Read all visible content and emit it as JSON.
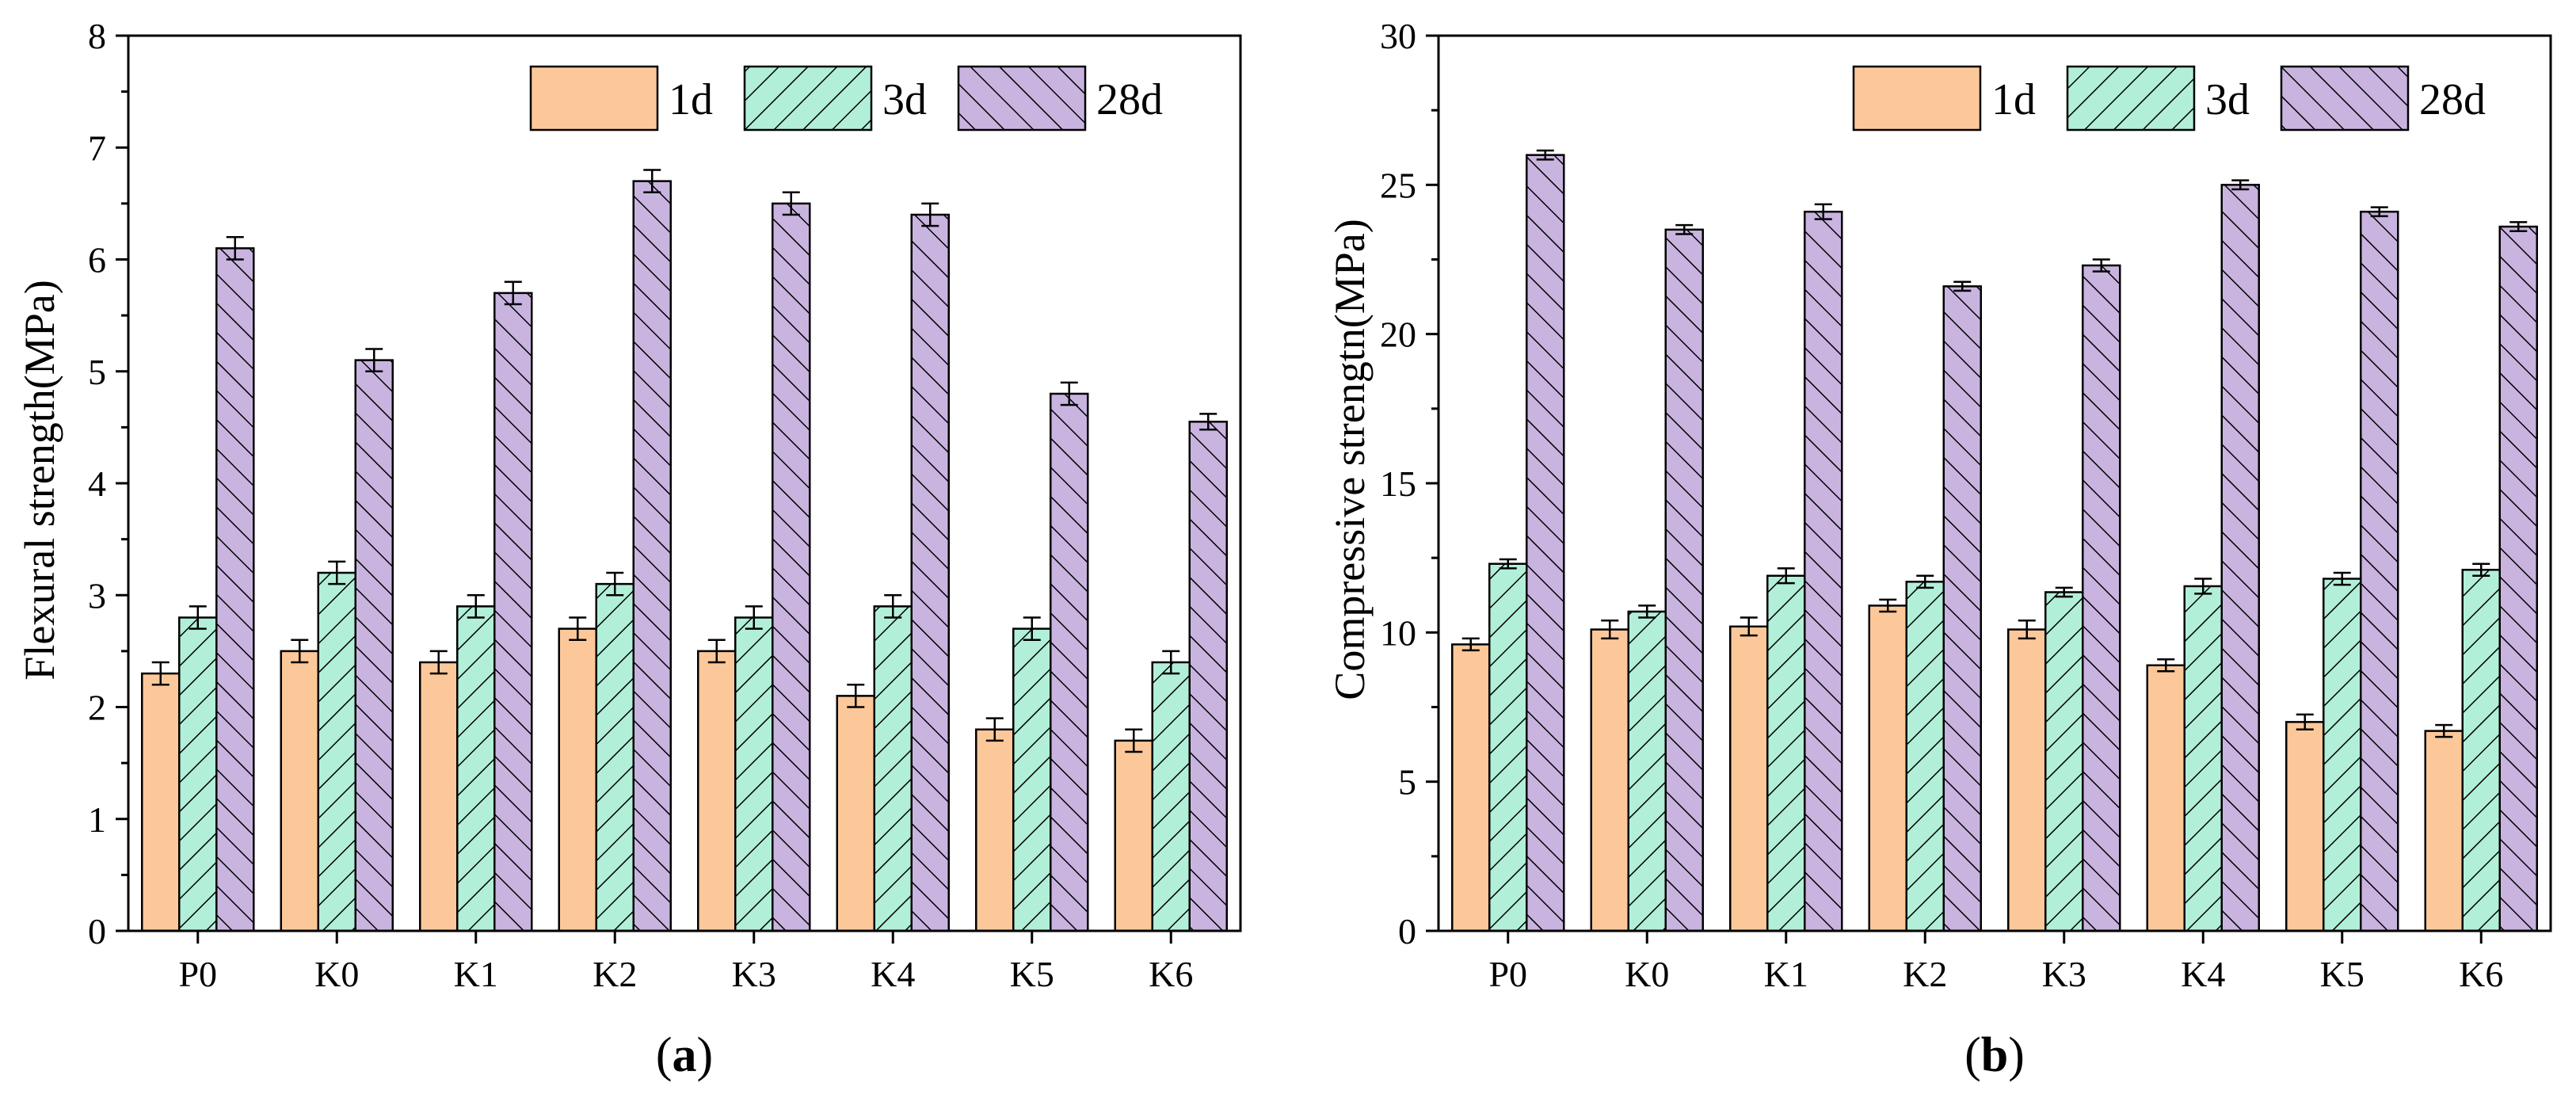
{
  "colors": {
    "1d": "#fcc89a",
    "3d": "#b2efd9",
    "28d": "#c9b4e0",
    "outline": "#000000"
  },
  "chart_data": [
    {
      "type": "bar",
      "panel_label": "a",
      "categories": [
        "P0",
        "K0",
        "K1",
        "K2",
        "K3",
        "K4",
        "K5",
        "K6"
      ],
      "series": [
        {
          "name": "1d",
          "values": [
            2.3,
            2.5,
            2.4,
            2.7,
            2.5,
            2.1,
            1.8,
            1.7
          ],
          "errors": [
            0.1,
            0.1,
            0.1,
            0.1,
            0.1,
            0.1,
            0.1,
            0.1
          ],
          "hatch": "none"
        },
        {
          "name": "3d",
          "values": [
            2.8,
            3.2,
            2.9,
            3.1,
            2.8,
            2.9,
            2.7,
            2.4
          ],
          "errors": [
            0.1,
            0.1,
            0.1,
            0.1,
            0.1,
            0.1,
            0.1,
            0.1
          ],
          "hatch": "forward"
        },
        {
          "name": "28d",
          "values": [
            6.1,
            5.1,
            5.7,
            6.7,
            6.5,
            6.4,
            4.8,
            4.55
          ],
          "errors": [
            0.1,
            0.1,
            0.1,
            0.1,
            0.1,
            0.1,
            0.1,
            0.07
          ],
          "hatch": "back"
        }
      ],
      "xlabel": "",
      "ylabel": "Flexural strength(MPa)",
      "ylim": [
        0,
        8
      ],
      "yticks": [
        0,
        1,
        2,
        3,
        4,
        5,
        6,
        7,
        8
      ],
      "legend": "top-right",
      "grid": false
    },
    {
      "type": "bar",
      "panel_label": "b",
      "categories": [
        "P0",
        "K0",
        "K1",
        "K2",
        "K3",
        "K4",
        "K5",
        "K6"
      ],
      "series": [
        {
          "name": "1d",
          "values": [
            9.6,
            10.1,
            10.2,
            10.9,
            10.1,
            8.9,
            7.0,
            6.7
          ],
          "errors": [
            0.2,
            0.3,
            0.3,
            0.2,
            0.3,
            0.2,
            0.25,
            0.2
          ],
          "hatch": "none"
        },
        {
          "name": "3d",
          "values": [
            12.3,
            10.7,
            11.9,
            11.7,
            11.35,
            11.55,
            11.8,
            12.1
          ],
          "errors": [
            0.15,
            0.2,
            0.25,
            0.2,
            0.15,
            0.25,
            0.2,
            0.2
          ],
          "hatch": "forward"
        },
        {
          "name": "28d",
          "values": [
            26.0,
            23.5,
            24.1,
            21.6,
            22.3,
            25.0,
            24.1,
            23.6
          ],
          "errors": [
            0.15,
            0.15,
            0.25,
            0.15,
            0.2,
            0.15,
            0.15,
            0.15
          ],
          "hatch": "back"
        }
      ],
      "xlabel": "",
      "ylabel": "Compressive strengtn(MPa)",
      "ylim": [
        0,
        30
      ],
      "yticks": [
        0,
        5,
        10,
        15,
        20,
        25,
        30
      ],
      "legend": "top-right",
      "grid": false
    }
  ]
}
